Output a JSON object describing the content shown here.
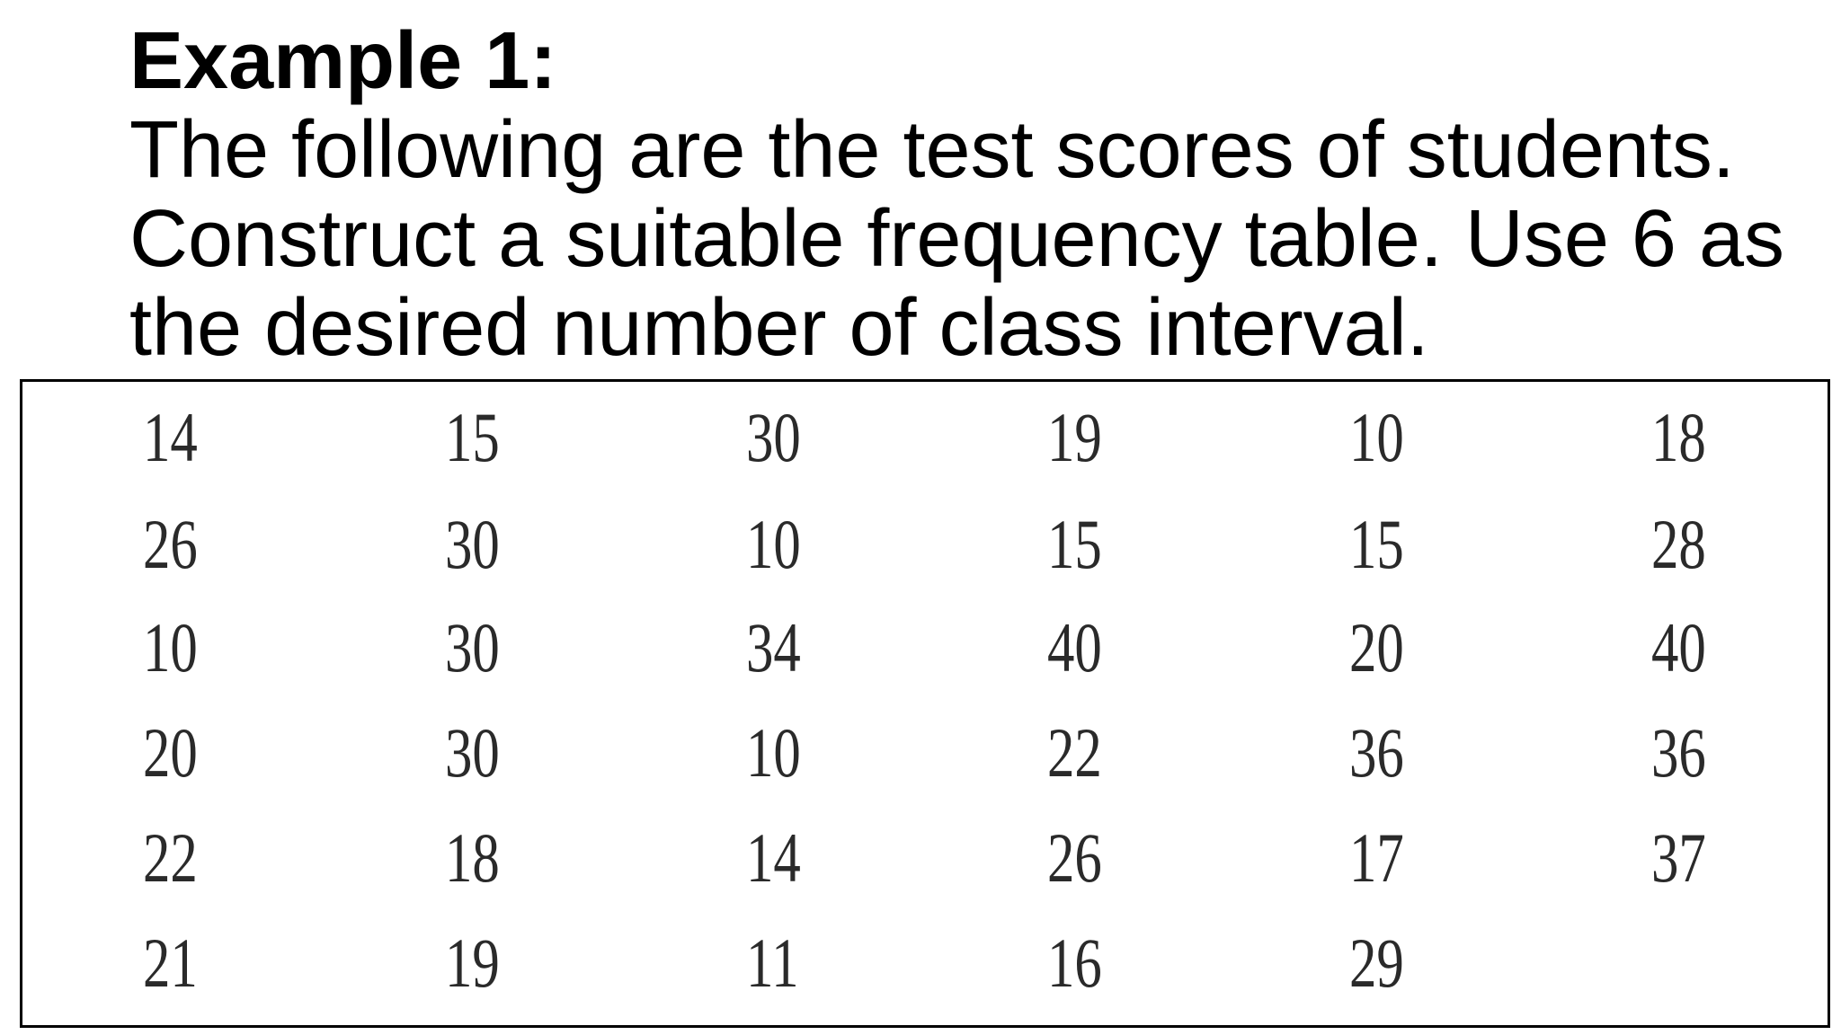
{
  "heading": "Example 1:",
  "prompt_lines": [
    "The following are the test scores of students.",
    "Construct a suitable frequency table. Use 6 as",
    "the desired number of class interval."
  ],
  "scores": [
    [
      "14",
      "15",
      "30",
      "19",
      "10",
      "18"
    ],
    [
      "26",
      "30",
      "10",
      "15",
      "15",
      "28"
    ],
    [
      "10",
      "30",
      "34",
      "40",
      "20",
      "40"
    ],
    [
      "20",
      "30",
      "10",
      "22",
      "36",
      "36"
    ],
    [
      "22",
      "18",
      "14",
      "26",
      "17",
      "37"
    ],
    [
      "21",
      "19",
      "11",
      "16",
      "29",
      ""
    ]
  ]
}
